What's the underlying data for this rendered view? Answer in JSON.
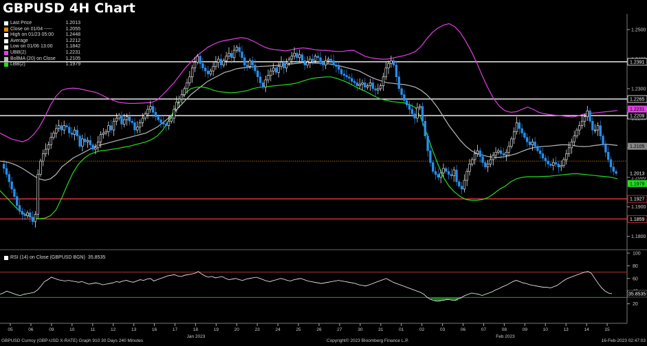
{
  "title": "GBPUSD 4H Chart",
  "legend": [
    {
      "label": "Last Price",
      "value": "1.2013",
      "color": "#ffffff"
    },
    {
      "label": "Close on 01/04 -----",
      "value": "1.2055",
      "color": "#e08a00"
    },
    {
      "label": "High on 01/23 05:00",
      "value": "1.2448",
      "color": "#ffffff"
    },
    {
      "label": "Average",
      "value": "1.2212",
      "color": "#ffffff"
    },
    {
      "label": "Low on 01/06 13:00",
      "value": "1.1842",
      "color": "#ffffff"
    },
    {
      "label": "UBB(2)",
      "value": "1.2231",
      "color": "#e040e0"
    },
    {
      "label": "BollMA (20)  on Close",
      "value": "1.2105",
      "color": "#bbbbbb"
    },
    {
      "label": "LBB(2)",
      "value": "1.1979",
      "color": "#22dd22"
    }
  ],
  "rsi_label": "RSI (14)  on Close (GBPUSD BGN)",
  "rsi_value": "35.8535",
  "footer_left": "GBPUSD Curncy (GBP-USD X-RATE) Graph 910 30 Days 240 Minutes",
  "footer_center": "Copyright© 2023 Bloomberg Finance L.P.",
  "footer_right": "16-Feb-2023 02:47:03",
  "month_labels": [
    {
      "label": "Jan 2023",
      "x": 285
    },
    {
      "label": "Feb 2023",
      "x": 735
    }
  ],
  "chart_data": {
    "type": "candlestick",
    "x_ticks": [
      "05",
      "06",
      "09",
      "10",
      "11",
      "12",
      "13",
      "16",
      "17",
      "18",
      "19",
      "20",
      "23",
      "24",
      "25",
      "26",
      "27",
      "30",
      "31",
      "01",
      "02",
      "03",
      "06",
      "07",
      "08",
      "09",
      "10",
      "13",
      "14",
      "15"
    ],
    "y_ticks": [
      1.18,
      1.19,
      1.2,
      1.21,
      1.22,
      1.23,
      1.24,
      1.25
    ],
    "ylim": [
      1.1762,
      1.2535
    ],
    "horizontal_levels": [
      {
        "value": 1.2391,
        "label": "1.2391",
        "color": "#ffffff"
      },
      {
        "value": 1.2265,
        "label": "1.2265",
        "color": "#ffffff"
      },
      {
        "value": 1.2209,
        "label": "1.2209",
        "color": "#ffffff"
      },
      {
        "value": 1.1927,
        "label": "1.1927",
        "color": "#e03040"
      },
      {
        "value": 1.1859,
        "label": "1.1859",
        "color": "#e03040"
      }
    ],
    "close_ref": {
      "value": 1.2055,
      "color": "#e08a00"
    },
    "badges": [
      {
        "value": 1.2231,
        "label": "1.2231",
        "bg": "#e040e0",
        "fg": "#000000"
      },
      {
        "value": 1.2105,
        "label": "1.2105",
        "bg": "#888888",
        "fg": "#000000"
      },
      {
        "value": 1.2013,
        "label": "1.2013",
        "bg": "#000000",
        "fg": "#ffffff"
      },
      {
        "value": 1.1979,
        "label": "1.1979",
        "bg": "#22dd22",
        "fg": "#000000"
      }
    ],
    "price_series": [
      1.2045,
      1.203,
      1.201,
      1.1985,
      1.196,
      1.1935,
      1.1905,
      1.1885,
      1.1875,
      1.187,
      1.188,
      1.1865,
      1.185,
      1.1875,
      1.201,
      1.2055,
      1.208,
      1.2095,
      1.211,
      1.2135,
      1.215,
      1.2165,
      1.2175,
      1.216,
      1.2175,
      1.217,
      1.215,
      1.2145,
      1.216,
      1.214,
      1.2105,
      1.213,
      1.212,
      1.2125,
      1.211,
      1.2095,
      1.21,
      1.212,
      1.2145,
      1.215,
      1.2155,
      1.2175,
      1.216,
      1.219,
      1.22,
      1.221,
      1.218,
      1.2195,
      1.2205,
      1.219,
      1.2185,
      1.216,
      1.217,
      1.2185,
      1.22,
      1.2215,
      1.223,
      1.224,
      1.222,
      1.2205,
      1.2195,
      1.2185,
      1.218,
      1.2175,
      1.219,
      1.22,
      1.223,
      1.2255,
      1.2265,
      1.228,
      1.23,
      1.232,
      1.234,
      1.237,
      1.239,
      1.241,
      1.2385,
      1.237,
      1.236,
      1.235,
      1.236,
      1.2375,
      1.239,
      1.24,
      1.238,
      1.2395,
      1.241,
      1.242,
      1.2405,
      1.243,
      1.244,
      1.2425,
      1.2405,
      1.238,
      1.2375,
      1.2395,
      1.238,
      1.236,
      1.234,
      1.232,
      1.2305,
      1.233,
      1.2345,
      1.236,
      1.237,
      1.2355,
      1.2375,
      1.239,
      1.237,
      1.2385,
      1.24,
      1.241,
      1.242,
      1.2405,
      1.2415,
      1.2395,
      1.238,
      1.239,
      1.24,
      1.2395,
      1.241,
      1.2405,
      1.239,
      1.238,
      1.2395,
      1.24,
      1.2395,
      1.238,
      1.2375,
      1.2365,
      1.235,
      1.2345,
      1.234,
      1.2335,
      1.2325,
      1.232,
      1.231,
      1.2315,
      1.232,
      1.2305,
      1.231,
      1.232,
      1.23,
      1.2295,
      1.23,
      1.231,
      1.234,
      1.237,
      1.2385,
      1.2395,
      1.238,
      1.234,
      1.23,
      1.228,
      1.226,
      1.2245,
      1.223,
      1.2215,
      1.22,
      1.2235,
      1.224,
      1.219,
      1.214,
      1.209,
      1.205,
      1.202,
      1.201,
      1.2,
      1.2015,
      1.203,
      1.202,
      1.201,
      1.2005,
      1.2025,
      1.1985,
      1.197,
      1.196,
      1.199,
      1.202,
      1.2045,
      1.206,
      1.208,
      1.209,
      1.207,
      1.205,
      1.2035,
      1.2045,
      1.206,
      1.2075,
      1.2085,
      1.209,
      1.208,
      1.2075,
      1.2085,
      1.2105,
      1.213,
      1.2155,
      1.2185,
      1.2165,
      1.215,
      1.2135,
      1.212,
      1.211,
      1.212,
      1.2105,
      1.209,
      1.208,
      1.2065,
      1.2055,
      1.2045,
      1.204,
      1.205,
      1.2045,
      1.2035,
      1.204,
      1.206,
      1.208,
      1.21,
      1.212,
      1.214,
      1.216,
      1.2175,
      1.219,
      1.2205,
      1.2225,
      1.219,
      1.216,
      1.216,
      1.2175,
      1.214,
      1.211,
      1.2085,
      1.206,
      1.2035,
      1.202,
      1.2013
    ],
    "ubb_series": [
      1.215,
      1.214,
      1.213,
      1.2125,
      1.212,
      1.2128,
      1.2145,
      1.217,
      1.2205,
      1.2245,
      1.2275,
      1.2295,
      1.23,
      1.2302,
      1.23,
      1.2296,
      1.2292,
      1.2288,
      1.228,
      1.227,
      1.2262,
      1.2255,
      1.2252,
      1.225,
      1.225,
      1.2251,
      1.2252,
      1.2253,
      1.2262,
      1.228,
      1.23,
      1.232,
      1.2345,
      1.237,
      1.239,
      1.241,
      1.2425,
      1.244,
      1.245,
      1.2458,
      1.2463,
      1.2466,
      1.247,
      1.2473,
      1.247,
      1.2462,
      1.2452,
      1.2442,
      1.2435,
      1.2432,
      1.243,
      1.2428,
      1.2432,
      1.2436,
      1.2438,
      1.2436,
      1.2432,
      1.243,
      1.243,
      1.2428,
      1.2426,
      1.2426,
      1.2429,
      1.243,
      1.242,
      1.241,
      1.2405,
      1.2402,
      1.24,
      1.24,
      1.2404,
      1.2408,
      1.2412,
      1.2418,
      1.2426,
      1.2443,
      1.2468,
      1.249,
      1.2505,
      1.2515,
      1.252,
      1.251,
      1.249,
      1.246,
      1.2425,
      1.2385,
      1.234,
      1.23,
      1.2265,
      1.224,
      1.2225,
      1.222,
      1.2222,
      1.223,
      1.2238,
      1.223,
      1.222,
      1.2215,
      1.2212,
      1.221,
      1.2208,
      1.2206,
      1.2204,
      1.2208,
      1.2214,
      1.2216,
      1.2218,
      1.222,
      1.2222,
      1.2224,
      1.2226
    ],
    "ma_series": [
      1.2055,
      1.2052,
      1.2048,
      1.204,
      1.203,
      1.2018,
      1.2005,
      1.1995,
      1.199,
      1.1995,
      1.201,
      1.2035,
      1.205,
      1.2065,
      1.2075,
      1.2085,
      1.2095,
      1.2105,
      1.211,
      1.2115,
      1.212,
      1.2125,
      1.213,
      1.2135,
      1.214,
      1.2145,
      1.215,
      1.216,
      1.217,
      1.2185,
      1.22,
      1.222,
      1.224,
      1.226,
      1.228,
      1.2295,
      1.231,
      1.2325,
      1.2335,
      1.2345,
      1.2355,
      1.236,
      1.2367,
      1.237,
      1.2372,
      1.2374,
      1.2375,
      1.2376,
      1.2377,
      1.2378,
      1.238,
      1.2382,
      1.2384,
      1.2386,
      1.2388,
      1.2388,
      1.2387,
      1.2386,
      1.2385,
      1.2383,
      1.2379,
      1.2375,
      1.237,
      1.2365,
      1.236,
      1.235,
      1.234,
      1.2332,
      1.2326,
      1.232,
      1.2318,
      1.2316,
      1.2314,
      1.231,
      1.2305,
      1.2295,
      1.228,
      1.226,
      1.2235,
      1.2205,
      1.2175,
      1.215,
      1.2125,
      1.2105,
      1.209,
      1.208,
      1.2075,
      1.207,
      1.2068,
      1.2068,
      1.207,
      1.2075,
      1.208,
      1.2088,
      1.2095,
      1.21,
      1.2103,
      1.2105,
      1.2106,
      1.2108,
      1.211,
      1.211,
      1.2108,
      1.2105,
      1.2104,
      1.2105,
      1.2108,
      1.211,
      1.2112,
      1.211,
      1.2108
    ],
    "lbb_series": [
      1.1955,
      1.1935,
      1.1915,
      1.1895,
      1.188,
      1.187,
      1.1862,
      1.186,
      1.1862,
      1.187,
      1.189,
      1.193,
      1.1975,
      1.2015,
      1.2045,
      1.2065,
      1.2078,
      1.2085,
      1.209,
      1.2092,
      1.2095,
      1.2098,
      1.2102,
      1.2105,
      1.211,
      1.2115,
      1.212,
      1.2128,
      1.214,
      1.216,
      1.219,
      1.2225,
      1.226,
      1.2285,
      1.23,
      1.2305,
      1.2306,
      1.2302,
      1.2295,
      1.229,
      1.2288,
      1.2286,
      1.2287,
      1.229,
      1.2293,
      1.23,
      1.2304,
      1.2306,
      1.2308,
      1.231,
      1.2312,
      1.2314,
      1.2316,
      1.232,
      1.2326,
      1.2332,
      1.2336,
      1.2338,
      1.234,
      1.234,
      1.2335,
      1.2328,
      1.232,
      1.231,
      1.23,
      1.2292,
      1.2282,
      1.2272,
      1.2264,
      1.226,
      1.2256,
      1.2254,
      1.2252,
      1.2246,
      1.2236,
      1.22,
      1.215,
      1.2095,
      1.2045,
      1.2,
      1.197,
      1.195,
      1.1935,
      1.1925,
      1.1922,
      1.1922,
      1.1925,
      1.1932,
      1.1945,
      1.196,
      1.197,
      1.1985,
      1.1995,
      1.2,
      1.2002,
      1.2002,
      1.2002,
      1.2003,
      1.2004,
      1.2006,
      1.2008,
      1.201,
      1.2012,
      1.2012,
      1.201,
      1.2008,
      1.2006,
      1.2004,
      1.2002,
      1.2,
      1.1995
    ],
    "rsi": {
      "ylim": [
        0,
        100
      ],
      "y_ticks": [
        20,
        40,
        60,
        80,
        100
      ],
      "overbought": 70,
      "oversold": 30,
      "last": 35.8535,
      "series": [
        35,
        37,
        40,
        38,
        36,
        34,
        33,
        35,
        36,
        37,
        38,
        42,
        48,
        55,
        58,
        62,
        60,
        58,
        57,
        56,
        57,
        56,
        55,
        54,
        55,
        53,
        51,
        52,
        53,
        52,
        50,
        51,
        52,
        53,
        55,
        54,
        56,
        57,
        55,
        54,
        56,
        58,
        57,
        59,
        60,
        56,
        58,
        60,
        62,
        64,
        65,
        66,
        64,
        63,
        65,
        66,
        67,
        68,
        71,
        67,
        64,
        62,
        63,
        61,
        62,
        63,
        60,
        58,
        59,
        60,
        58,
        57,
        59,
        60,
        61,
        62,
        60,
        58,
        56,
        55,
        57,
        58,
        60,
        59,
        57,
        56,
        58,
        59,
        60,
        58,
        56,
        55,
        54,
        53,
        52,
        53,
        54,
        55,
        56,
        57,
        56,
        55,
        54,
        53,
        52,
        50,
        49,
        48,
        50,
        52,
        54,
        56,
        58,
        60,
        57,
        54,
        52,
        50,
        48,
        46,
        44,
        42,
        40,
        38,
        35,
        30,
        27,
        25,
        24,
        25,
        26,
        27,
        26,
        25,
        28,
        30,
        33,
        35,
        37,
        36,
        35,
        33,
        35,
        37,
        39,
        42,
        44,
        47,
        49,
        52,
        55,
        57,
        55,
        53,
        52,
        50,
        49,
        48,
        47,
        46,
        46,
        45,
        47,
        49,
        53,
        57,
        60,
        62,
        64,
        66,
        68,
        70,
        71,
        68,
        60,
        52,
        45,
        40,
        37,
        35.8535
      ]
    }
  }
}
